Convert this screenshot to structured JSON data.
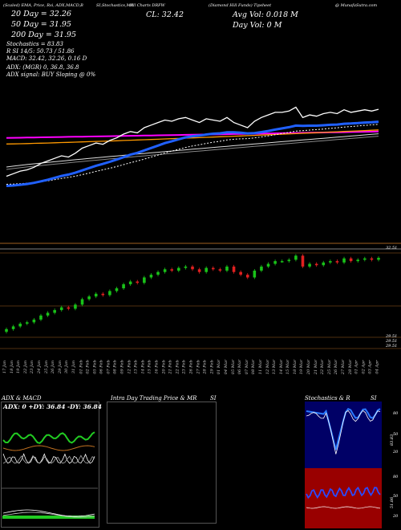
{
  "header": {
    "topline_left": "(Scaled) EMA, Price, Rsi, ADX,MACD,B",
    "topline_mid": "SI,Stochastics,MR",
    "topline_mid2": "rill Charts DRFW",
    "topline_right": "(Diamond Hill Funds) Tipsheet",
    "topline_site": "@ MunafaSutra.com",
    "close_label": "CL: 32.42",
    "avg_vol": "Avg Vol: 0.018  M",
    "day_vol": "Day Vol: 0  M",
    "ema20": "20  Day = 32.26",
    "ema50": "50  Day = 31.95",
    "ema200": "200  Day = 31.95",
    "stoch": "Stochastics = 83.83",
    "rsi_line": "R                 SI 14/5: 50.73 / 51.86",
    "macd_line": "MACD: 32.42, 32.26, 0.16  D",
    "adx_line": "ADX:                        (MGR) 0, 36.8,  36.8",
    "adx_signal": "ADX  signal:                         BUY Sloping @ 0%"
  },
  "price_panel": {
    "right_top_price": "32.51",
    "right_low_prices": [
      "29.51",
      "29.51",
      "29.51"
    ]
  },
  "dates": [
    "17 Jan",
    "18 Jan",
    "19 Jan",
    "22 Jan",
    "23 Jan",
    "24 Jan",
    "25 Jan",
    "26 Jan",
    "29 Jan",
    "30 Jan",
    "31 Jan",
    "01 Feb",
    "02 Feb",
    "05 Feb",
    "06 Feb",
    "07 Feb",
    "08 Feb",
    "09 Feb",
    "12 Feb",
    "13 Feb",
    "14 Feb",
    "15 Feb",
    "16 Feb",
    "20 Feb",
    "21 Feb",
    "22 Feb",
    "23 Feb",
    "26 Feb",
    "27 Feb",
    "28 Feb",
    "29 Feb",
    "01 Mar",
    "04 Mar",
    "05 Mar",
    "06 Mar",
    "07 Mar",
    "08 Mar",
    "11 Mar",
    "12 Mar",
    "13 Mar",
    "14 Mar",
    "15 Mar",
    "18 Mar",
    "19 Mar",
    "20 Mar",
    "21 Mar",
    "22 Mar",
    "25 Mar",
    "26 Mar",
    "27 Mar",
    "28 Mar",
    "01 Apr",
    "02 Apr",
    "03 Apr",
    "04 Apr"
  ],
  "bottom_panels": {
    "adx_title": "ADX  & MACD",
    "adx_values": "ADX: 0  +DY: 36.84  -DY: 36.84",
    "intraday_title": "Intra  Day Trading Price  & MR",
    "intraday_si": "SI",
    "stoch_title": "Stochastics & R",
    "stoch_si": "SI",
    "stoch_labels": [
      "80",
      "50",
      "20"
    ],
    "stoch_value": "83.83",
    "rsi_labels": [
      "80",
      "50",
      "20"
    ],
    "rsi_value": "51.86"
  },
  "chart_data": [
    {
      "type": "line",
      "title": "",
      "series": [
        {
          "name": "Price",
          "color": "#ffffff",
          "values": [
            29.8,
            29.9,
            30.0,
            30.05,
            30.15,
            30.3,
            30.4,
            30.5,
            30.6,
            30.55,
            30.7,
            30.9,
            31.0,
            31.1,
            31.05,
            31.2,
            31.3,
            31.45,
            31.55,
            31.5,
            31.7,
            31.8,
            31.9,
            32.0,
            31.95,
            32.05,
            32.1,
            32.0,
            31.9,
            32.05,
            32.0,
            31.95,
            32.1,
            31.9,
            31.8,
            31.7,
            31.95,
            32.1,
            32.2,
            32.3,
            32.3,
            32.35,
            32.5,
            32.1,
            32.2,
            32.15,
            32.25,
            32.3,
            32.25,
            32.4,
            32.3,
            32.35,
            32.4,
            32.35,
            32.42
          ]
        },
        {
          "name": "20 Day EMA",
          "color": "#2060ff"
        },
        {
          "name": "50 Day EMA",
          "color": "#ffffff"
        },
        {
          "name": "200 Day EMA",
          "color": "#ff00ff"
        }
      ]
    }
  ],
  "colors": {
    "up": "#19c219",
    "down": "#e02020",
    "ema20": "#2060ff",
    "ema200": "#ff00ff",
    "ema_orange": "#ff9900",
    "rsi_bg": "#990000",
    "stoch_bg": "#000066"
  }
}
